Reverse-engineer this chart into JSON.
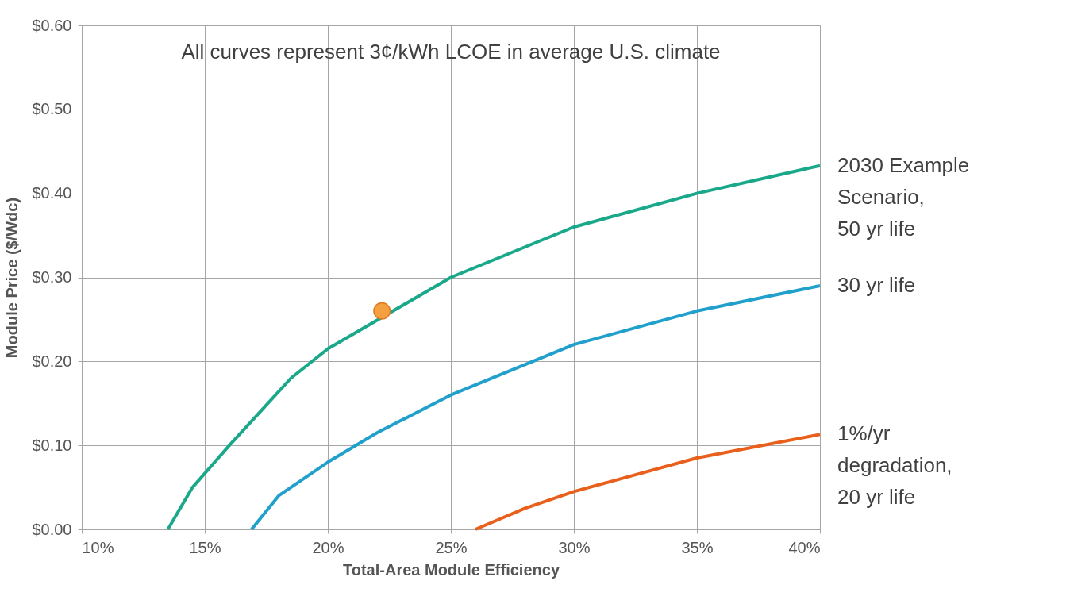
{
  "chart_data": {
    "type": "line",
    "xlabel": "Total-Area Module Efficiency",
    "ylabel": "Module Price ($/Wdc)",
    "annotations": [
      "All curves represent 3¢/kWh LCOE in average U.S. climate"
    ],
    "xlim": [
      10,
      40
    ],
    "xticks": [
      {
        "value": 10,
        "label": "10%"
      },
      {
        "value": 15,
        "label": "15%"
      },
      {
        "value": 20,
        "label": "20%"
      },
      {
        "value": 25,
        "label": "25%"
      },
      {
        "value": 30,
        "label": "30%"
      },
      {
        "value": 35,
        "label": "35%"
      },
      {
        "value": 40,
        "label": "40%"
      }
    ],
    "ylim": [
      0,
      0.6
    ],
    "yticks": [
      {
        "value": 0,
        "label": "$0.00"
      },
      {
        "value": 0.1,
        "label": "$0.10"
      },
      {
        "value": 0.2,
        "label": "$0.20"
      },
      {
        "value": 0.3,
        "label": "$0.30"
      },
      {
        "value": 0.4,
        "label": "$0.40"
      },
      {
        "value": 0.5,
        "label": "$0.50"
      },
      {
        "value": 0.6,
        "label": "$0.60"
      }
    ],
    "grid": true,
    "line_style": "solid",
    "series": [
      {
        "name": "2030 Example\nScenario,\n50 yr life",
        "color": "#1aa88a",
        "marker": "none",
        "x": [
          13.5,
          14.5,
          16,
          18.5,
          20,
          25,
          30,
          35,
          40
        ],
        "values": [
          0,
          0.05,
          0.1,
          0.18,
          0.215,
          0.3,
          0.36,
          0.4,
          0.433
        ]
      },
      {
        "name": "30 yr life",
        "color": "#22a0cc",
        "marker": "none",
        "x": [
          16.9,
          18,
          20,
          22,
          25,
          30,
          35,
          40
        ],
        "values": [
          0,
          0.04,
          0.08,
          0.115,
          0.16,
          0.22,
          0.26,
          0.29
        ]
      },
      {
        "name": "1%/yr\ndegradation,\n20 yr life",
        "color": "#e8601c",
        "marker": "none",
        "x": [
          26,
          28,
          30,
          35,
          40
        ],
        "values": [
          0,
          0.025,
          0.045,
          0.085,
          0.113
        ]
      },
      {
        "type": "scatter",
        "color": "#f5a040",
        "marker": "circle",
        "x": [
          22.2
        ],
        "values": [
          0.26
        ]
      }
    ]
  }
}
